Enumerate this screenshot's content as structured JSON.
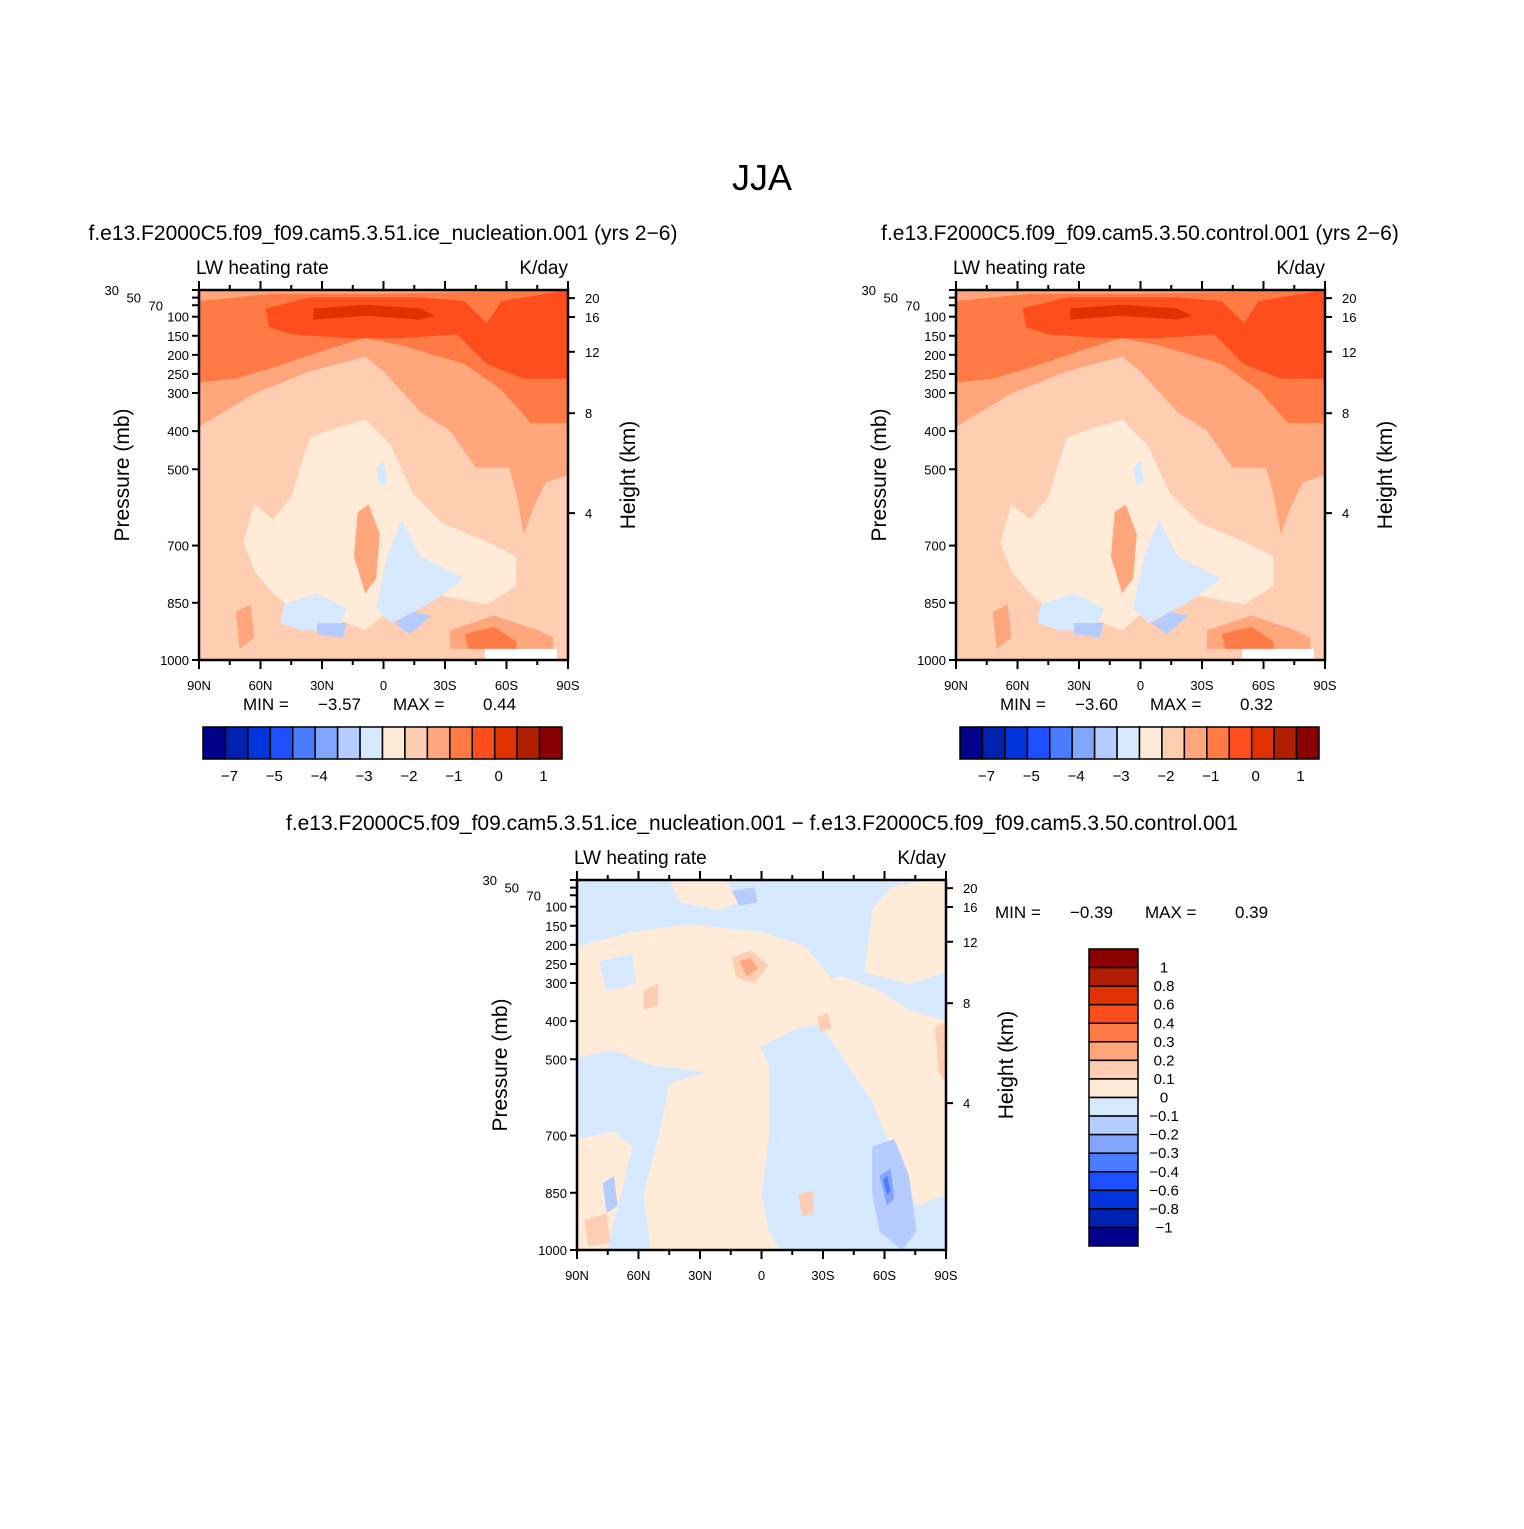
{
  "chart_data": {
    "type": "heatmap",
    "title": "JJA",
    "palette": [
      "#00008A",
      "#0020B0",
      "#0034DC",
      "#1E4EFF",
      "#4A7CFF",
      "#82A6FF",
      "#B4CCFF",
      "#D7E9FF",
      "#FFEBD8",
      "#FFCDB2",
      "#FFA67C",
      "#FF7A44",
      "#FF4E1E",
      "#E03200",
      "#B02000",
      "#8A0000"
    ],
    "panels": [
      {
        "title": "f.e13.F2000C5.f09_f09.cam5.3.51.ice_nucleation.001  (yrs 2−6)",
        "left_label": "LW heating rate",
        "right_label": "K/day",
        "ylabel": "Pressure (mb)",
        "ylabel_right": "Height (km)",
        "pressure_ticks": [
          "30",
          "50",
          "70",
          "100",
          "150",
          "200",
          "250",
          "300",
          "400",
          "500",
          "700",
          "850",
          "1000"
        ],
        "height_ticks": [
          "20",
          "16",
          "12",
          "8",
          "4"
        ],
        "lat_ticks": [
          "90N",
          "60N",
          "30N",
          "0",
          "30S",
          "60S",
          "90S"
        ],
        "min_label": "MIN =",
        "min": "−3.57",
        "max_label": "MAX =",
        "max": "0.44",
        "colorbar_labels": [
          "−7",
          "−5",
          "−4",
          "−3",
          "−2",
          "−1",
          "0",
          "1"
        ]
      },
      {
        "title": "f.e13.F2000C5.f09_f09.cam5.3.50.control.001  (yrs 2−6)",
        "left_label": "LW heating rate",
        "right_label": "K/day",
        "ylabel": "Pressure (mb)",
        "ylabel_right": "Height (km)",
        "pressure_ticks": [
          "30",
          "50",
          "70",
          "100",
          "150",
          "200",
          "250",
          "300",
          "400",
          "500",
          "700",
          "850",
          "1000"
        ],
        "height_ticks": [
          "20",
          "16",
          "12",
          "8",
          "4"
        ],
        "lat_ticks": [
          "90N",
          "60N",
          "30N",
          "0",
          "30S",
          "60S",
          "90S"
        ],
        "min_label": "MIN =",
        "min": "−3.60",
        "max_label": "MAX =",
        "max": "0.32",
        "colorbar_labels": [
          "−7",
          "−5",
          "−4",
          "−3",
          "−2",
          "−1",
          "0",
          "1"
        ]
      },
      {
        "title": "f.e13.F2000C5.f09_f09.cam5.3.51.ice_nucleation.001  −  f.e13.F2000C5.f09_f09.cam5.3.50.control.001",
        "left_label": "LW heating rate",
        "right_label": "K/day",
        "ylabel": "Pressure (mb)",
        "ylabel_right": "Height (km)",
        "pressure_ticks": [
          "30",
          "50",
          "70",
          "100",
          "150",
          "200",
          "250",
          "300",
          "400",
          "500",
          "700",
          "850",
          "1000"
        ],
        "height_ticks": [
          "20",
          "16",
          "12",
          "8",
          "4"
        ],
        "lat_ticks": [
          "90N",
          "60N",
          "30N",
          "0",
          "30S",
          "60S",
          "90S"
        ],
        "min_label": "MIN =",
        "min": "−0.39",
        "max_label": "MAX =",
        "max": "0.39",
        "colorbar_labels": [
          "1",
          "0.8",
          "0.6",
          "0.4",
          "0.3",
          "0.2",
          "0.1",
          "0",
          "−0.1",
          "−0.2",
          "−0.3",
          "−0.4",
          "−0.6",
          "−0.8",
          "−1"
        ]
      }
    ]
  }
}
